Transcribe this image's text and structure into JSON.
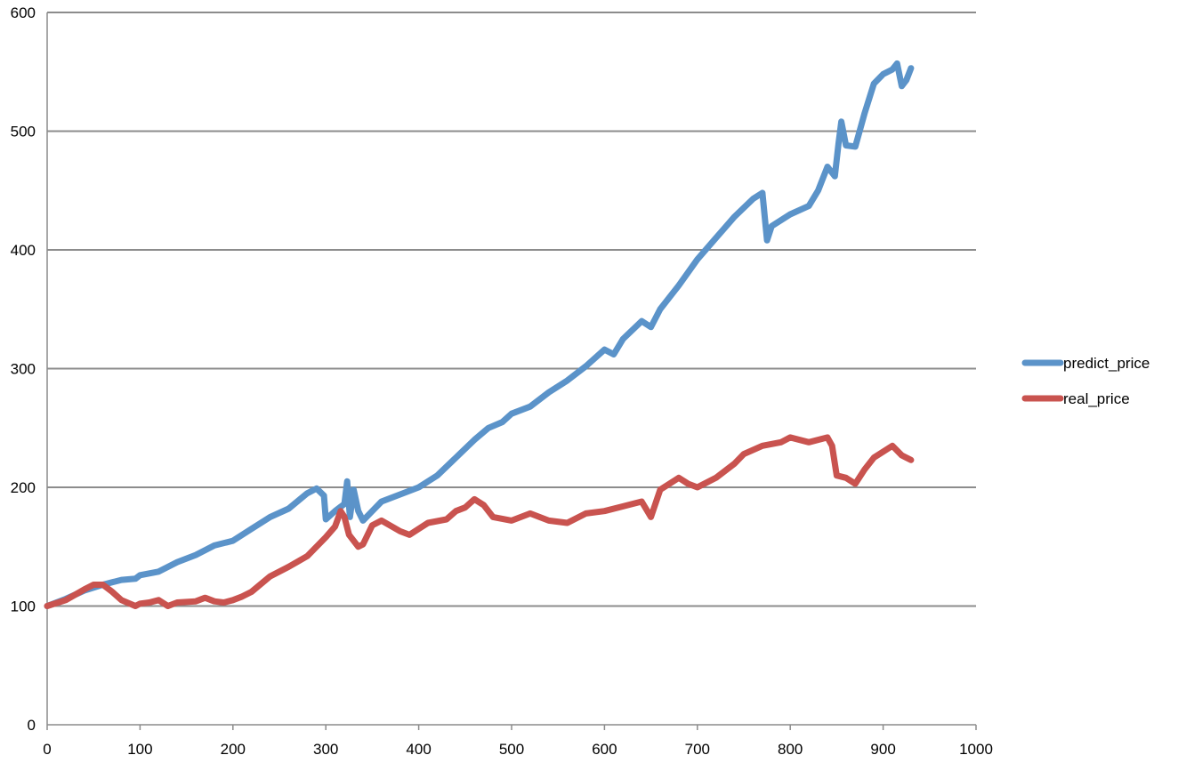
{
  "chart_data": {
    "type": "line",
    "title": "",
    "xlabel": "",
    "ylabel": "",
    "xlim": [
      0,
      1000
    ],
    "ylim": [
      0,
      600
    ],
    "x_ticks": [
      0,
      100,
      200,
      300,
      400,
      500,
      600,
      700,
      800,
      900,
      1000
    ],
    "y_ticks": [
      0,
      100,
      200,
      300,
      400,
      500,
      600
    ],
    "grid": "horizontal",
    "legend_position": "right",
    "series": [
      {
        "name": "predict_price",
        "color": "#5b93c9",
        "points": [
          [
            0,
            100
          ],
          [
            20,
            106
          ],
          [
            40,
            113
          ],
          [
            60,
            118
          ],
          [
            80,
            122
          ],
          [
            95,
            123
          ],
          [
            100,
            126
          ],
          [
            120,
            129
          ],
          [
            140,
            137
          ],
          [
            160,
            143
          ],
          [
            180,
            151
          ],
          [
            200,
            155
          ],
          [
            220,
            165
          ],
          [
            240,
            175
          ],
          [
            260,
            182
          ],
          [
            280,
            195
          ],
          [
            290,
            199
          ],
          [
            298,
            193
          ],
          [
            300,
            173
          ],
          [
            310,
            180
          ],
          [
            320,
            186
          ],
          [
            323,
            205
          ],
          [
            326,
            175
          ],
          [
            330,
            198
          ],
          [
            335,
            180
          ],
          [
            340,
            172
          ],
          [
            350,
            180
          ],
          [
            360,
            188
          ],
          [
            380,
            194
          ],
          [
            400,
            200
          ],
          [
            420,
            210
          ],
          [
            440,
            225
          ],
          [
            460,
            240
          ],
          [
            475,
            250
          ],
          [
            490,
            255
          ],
          [
            500,
            262
          ],
          [
            520,
            268
          ],
          [
            540,
            280
          ],
          [
            560,
            290
          ],
          [
            580,
            302
          ],
          [
            600,
            316
          ],
          [
            610,
            312
          ],
          [
            620,
            325
          ],
          [
            640,
            340
          ],
          [
            650,
            335
          ],
          [
            660,
            350
          ],
          [
            680,
            370
          ],
          [
            700,
            392
          ],
          [
            720,
            410
          ],
          [
            740,
            428
          ],
          [
            760,
            443
          ],
          [
            770,
            448
          ],
          [
            775,
            408
          ],
          [
            780,
            420
          ],
          [
            800,
            430
          ],
          [
            820,
            437
          ],
          [
            830,
            450
          ],
          [
            840,
            470
          ],
          [
            848,
            462
          ],
          [
            852,
            490
          ],
          [
            855,
            508
          ],
          [
            860,
            488
          ],
          [
            870,
            487
          ],
          [
            880,
            515
          ],
          [
            890,
            540
          ],
          [
            900,
            548
          ],
          [
            910,
            552
          ],
          [
            915,
            557
          ],
          [
            920,
            538
          ],
          [
            925,
            543
          ],
          [
            930,
            553
          ]
        ]
      },
      {
        "name": "real_price",
        "color": "#c9534f",
        "points": [
          [
            0,
            100
          ],
          [
            20,
            105
          ],
          [
            40,
            114
          ],
          [
            50,
            118
          ],
          [
            60,
            118
          ],
          [
            70,
            112
          ],
          [
            80,
            105
          ],
          [
            95,
            100
          ],
          [
            100,
            102
          ],
          [
            110,
            103
          ],
          [
            120,
            105
          ],
          [
            130,
            100
          ],
          [
            140,
            103
          ],
          [
            160,
            104
          ],
          [
            170,
            107
          ],
          [
            180,
            104
          ],
          [
            190,
            103
          ],
          [
            200,
            105
          ],
          [
            210,
            108
          ],
          [
            220,
            112
          ],
          [
            240,
            125
          ],
          [
            260,
            133
          ],
          [
            280,
            142
          ],
          [
            300,
            158
          ],
          [
            310,
            167
          ],
          [
            316,
            180
          ],
          [
            320,
            175
          ],
          [
            325,
            160
          ],
          [
            335,
            150
          ],
          [
            340,
            152
          ],
          [
            350,
            168
          ],
          [
            360,
            172
          ],
          [
            380,
            163
          ],
          [
            390,
            160
          ],
          [
            400,
            165
          ],
          [
            410,
            170
          ],
          [
            430,
            173
          ],
          [
            440,
            180
          ],
          [
            450,
            183
          ],
          [
            460,
            190
          ],
          [
            470,
            185
          ],
          [
            480,
            175
          ],
          [
            500,
            172
          ],
          [
            520,
            178
          ],
          [
            540,
            172
          ],
          [
            560,
            170
          ],
          [
            580,
            178
          ],
          [
            600,
            180
          ],
          [
            620,
            184
          ],
          [
            640,
            188
          ],
          [
            650,
            175
          ],
          [
            660,
            198
          ],
          [
            680,
            208
          ],
          [
            690,
            203
          ],
          [
            700,
            200
          ],
          [
            720,
            208
          ],
          [
            740,
            220
          ],
          [
            750,
            228
          ],
          [
            770,
            235
          ],
          [
            790,
            238
          ],
          [
            800,
            242
          ],
          [
            820,
            238
          ],
          [
            840,
            242
          ],
          [
            845,
            235
          ],
          [
            850,
            210
          ],
          [
            860,
            208
          ],
          [
            870,
            203
          ],
          [
            880,
            215
          ],
          [
            890,
            225
          ],
          [
            900,
            230
          ],
          [
            910,
            235
          ],
          [
            920,
            227
          ],
          [
            930,
            223
          ]
        ]
      }
    ]
  }
}
